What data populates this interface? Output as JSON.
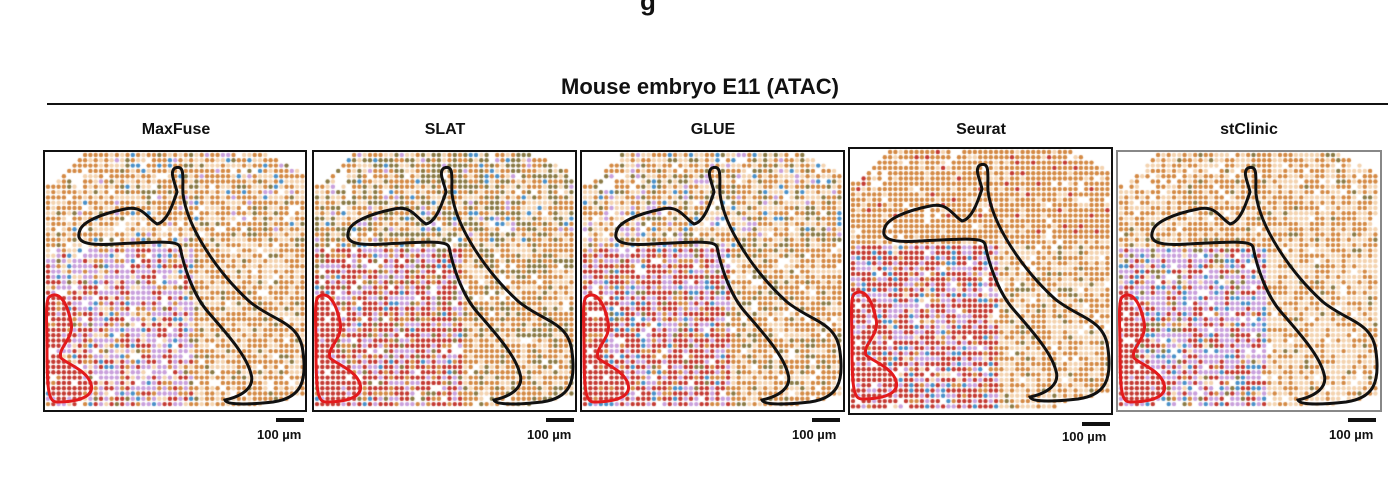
{
  "figure": {
    "title": "Mouse embryo E11 (ATAC)",
    "scale_label": "100 µm",
    "palette": {
      "orange": "#d48a45",
      "peach": "#f3d3b0",
      "olive": "#8a7a45",
      "lilac": "#c9a0dc",
      "red": "#c43a32",
      "blue": "#4a90c8",
      "outline_black": "#111111",
      "outline_red": "#e31a1c"
    },
    "panels": [
      {
        "label": "MaxFuse"
      },
      {
        "label": "SLAT"
      },
      {
        "label": "GLUE"
      },
      {
        "label": "Seurat"
      },
      {
        "label": "stClinic"
      }
    ]
  }
}
